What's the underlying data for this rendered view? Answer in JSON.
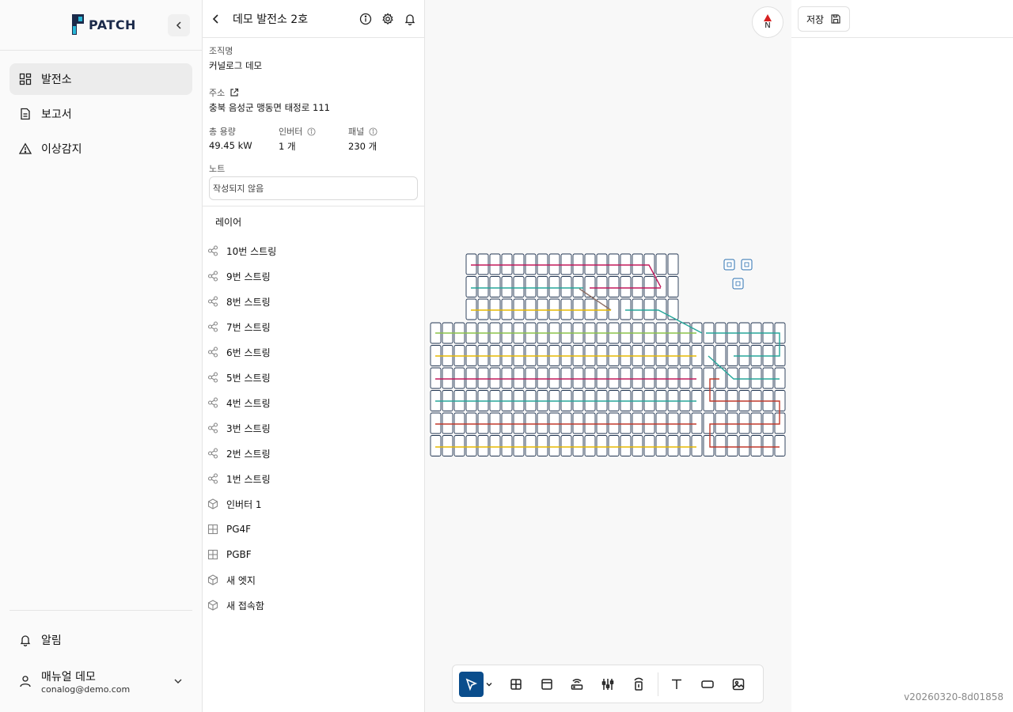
{
  "app": {
    "logo_text": "PATCH",
    "version": "v20260320-8d01858"
  },
  "sidebar": {
    "items": [
      {
        "label": "발전소",
        "icon": "dashboard-icon",
        "active": true
      },
      {
        "label": "보고서",
        "icon": "document-icon",
        "active": false
      },
      {
        "label": "이상감지",
        "icon": "warning-icon",
        "active": false
      }
    ],
    "alarm_label": "알림",
    "user": {
      "name": "매뉴얼 데모",
      "email": "conalog@demo.com"
    }
  },
  "detail": {
    "title": "데모 발전소 2호",
    "org_label": "조직명",
    "org_value": "커널로그 데모",
    "address_label": "주소",
    "address_value": "충북 음성군 맹동면 태정로 111",
    "capacity_label": "총 용량",
    "capacity_value": "49.45 kW",
    "inverter_label": "인버터",
    "inverter_value": "1 개",
    "panel_label": "패널",
    "panel_value": "230 개",
    "note_label": "노트",
    "note_placeholder": "작성되지 않음",
    "layers_title": "레이어",
    "layers": [
      {
        "label": "10번 스트링",
        "icon": "share-icon"
      },
      {
        "label": "9번 스트링",
        "icon": "share-icon"
      },
      {
        "label": "8번 스트링",
        "icon": "share-icon"
      },
      {
        "label": "7번 스트링",
        "icon": "share-icon"
      },
      {
        "label": "6번 스트링",
        "icon": "share-icon"
      },
      {
        "label": "5번 스트링",
        "icon": "share-icon"
      },
      {
        "label": "4번 스트링",
        "icon": "share-icon"
      },
      {
        "label": "3번 스트링",
        "icon": "share-icon"
      },
      {
        "label": "2번 스트링",
        "icon": "share-icon"
      },
      {
        "label": "1번 스트링",
        "icon": "share-icon"
      },
      {
        "label": "인버터 1",
        "icon": "cube-icon"
      },
      {
        "label": "PG4F",
        "icon": "grid-icon"
      },
      {
        "label": "PGBF",
        "icon": "grid-icon"
      },
      {
        "label": "새 엣지",
        "icon": "cube-icon"
      },
      {
        "label": "새 접속함",
        "icon": "cube-icon"
      }
    ]
  },
  "canvas": {
    "north_label": "N",
    "toolbar": [
      {
        "name": "select-tool",
        "icon": "cursor-icon",
        "active": true
      },
      {
        "name": "panel-group-tool",
        "icon": "grid-icon",
        "active": false
      },
      {
        "name": "panel-tool",
        "icon": "panel-icon",
        "active": false
      },
      {
        "name": "inverter-tool",
        "icon": "router-icon",
        "active": false
      },
      {
        "name": "string-tool",
        "icon": "string-icon",
        "active": false
      },
      {
        "name": "junction-tool",
        "icon": "junction-icon",
        "active": false
      },
      {
        "name": "text-tool",
        "icon": "text-icon",
        "active": false
      },
      {
        "name": "rectangle-tool",
        "icon": "rectangle-icon",
        "active": false
      },
      {
        "name": "image-tool",
        "icon": "image-icon",
        "active": false
      }
    ],
    "colors": {
      "panel_stroke": "#1f3350",
      "string_red": "#c0392b",
      "string_magenta": "#c2185b",
      "string_teal": "#26a69a",
      "string_yellow": "#e6b800",
      "string_green": "#8bc34a",
      "string_brown": "#8d6e63",
      "accent": "#0a4d8c"
    }
  },
  "right": {
    "save_label": "저장"
  }
}
